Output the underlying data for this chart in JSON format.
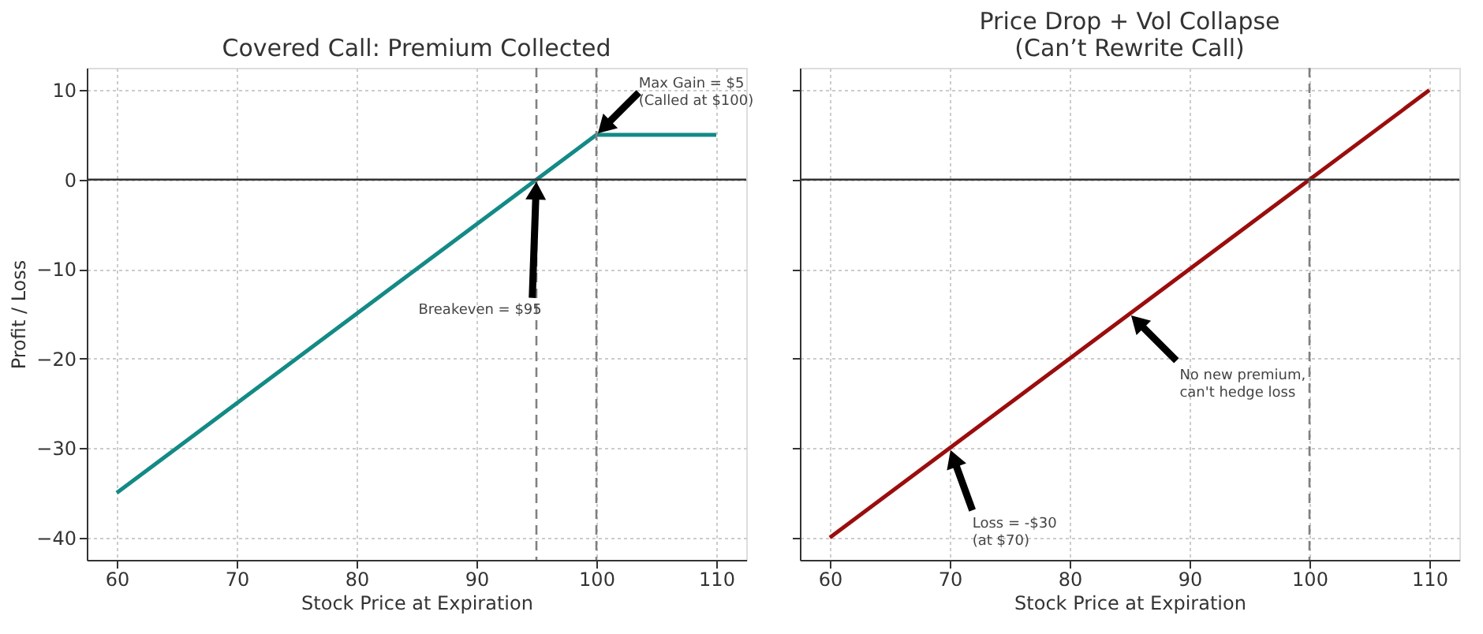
{
  "chart_data": [
    {
      "type": "line",
      "title": "Covered Call: Premium Collected",
      "xlabel": "Stock Price at Expiration",
      "ylabel": "Profit / Loss",
      "x": [
        60,
        100,
        110
      ],
      "series": [
        {
          "color": "#138a86",
          "values": [
            -35,
            5,
            5
          ]
        }
      ],
      "xlim": [
        57.5,
        112.5
      ],
      "xticks": [
        60,
        70,
        80,
        90,
        100,
        110
      ],
      "ylim": [
        -42.5,
        12.5
      ],
      "yticks": [
        -40,
        -30,
        -20,
        -10,
        0,
        10
      ],
      "grid": true,
      "marker": "none",
      "line_style": "solid",
      "ref_lines": [
        {
          "axis": "y",
          "value": 0,
          "color": "#333333",
          "line_style": "solid"
        },
        {
          "axis": "x",
          "value": 95,
          "color": "#808080",
          "line_style": "dashed"
        },
        {
          "axis": "x",
          "value": 100,
          "color": "#808080",
          "line_style": "dashed"
        }
      ],
      "annotations": [
        {
          "text": "Breakeven = $95",
          "x": 95,
          "y": 0
        },
        {
          "text": "Max Gain = $5\n(Called at $100)",
          "x": 100,
          "y": 5
        }
      ]
    },
    {
      "type": "line",
      "title": "Price Drop + Vol Collapse\n(Can’t Rewrite Call)",
      "xlabel": "Stock Price at Expiration",
      "x": [
        60,
        110
      ],
      "series": [
        {
          "color": "#9b0d0d",
          "values": [
            -40,
            10
          ]
        }
      ],
      "xlim": [
        57.5,
        112.5
      ],
      "xticks": [
        60,
        70,
        80,
        90,
        100,
        110
      ],
      "ylim": [
        -42.5,
        12.5
      ],
      "yticks": [
        -40,
        -30,
        -20,
        -10,
        0,
        10
      ],
      "grid": true,
      "marker": "none",
      "line_style": "solid",
      "tick_labels": "x",
      "ref_lines": [
        {
          "axis": "y",
          "value": 0,
          "color": "#333333",
          "line_style": "solid"
        },
        {
          "axis": "x",
          "value": 100,
          "color": "#808080",
          "line_style": "dashed"
        }
      ],
      "annotations": [
        {
          "text": "No new premium,\ncan't hedge loss",
          "x": 85,
          "y": -15
        },
        {
          "text": "Loss = -$30\n(at $70)",
          "x": 70,
          "y": -30
        }
      ]
    }
  ]
}
